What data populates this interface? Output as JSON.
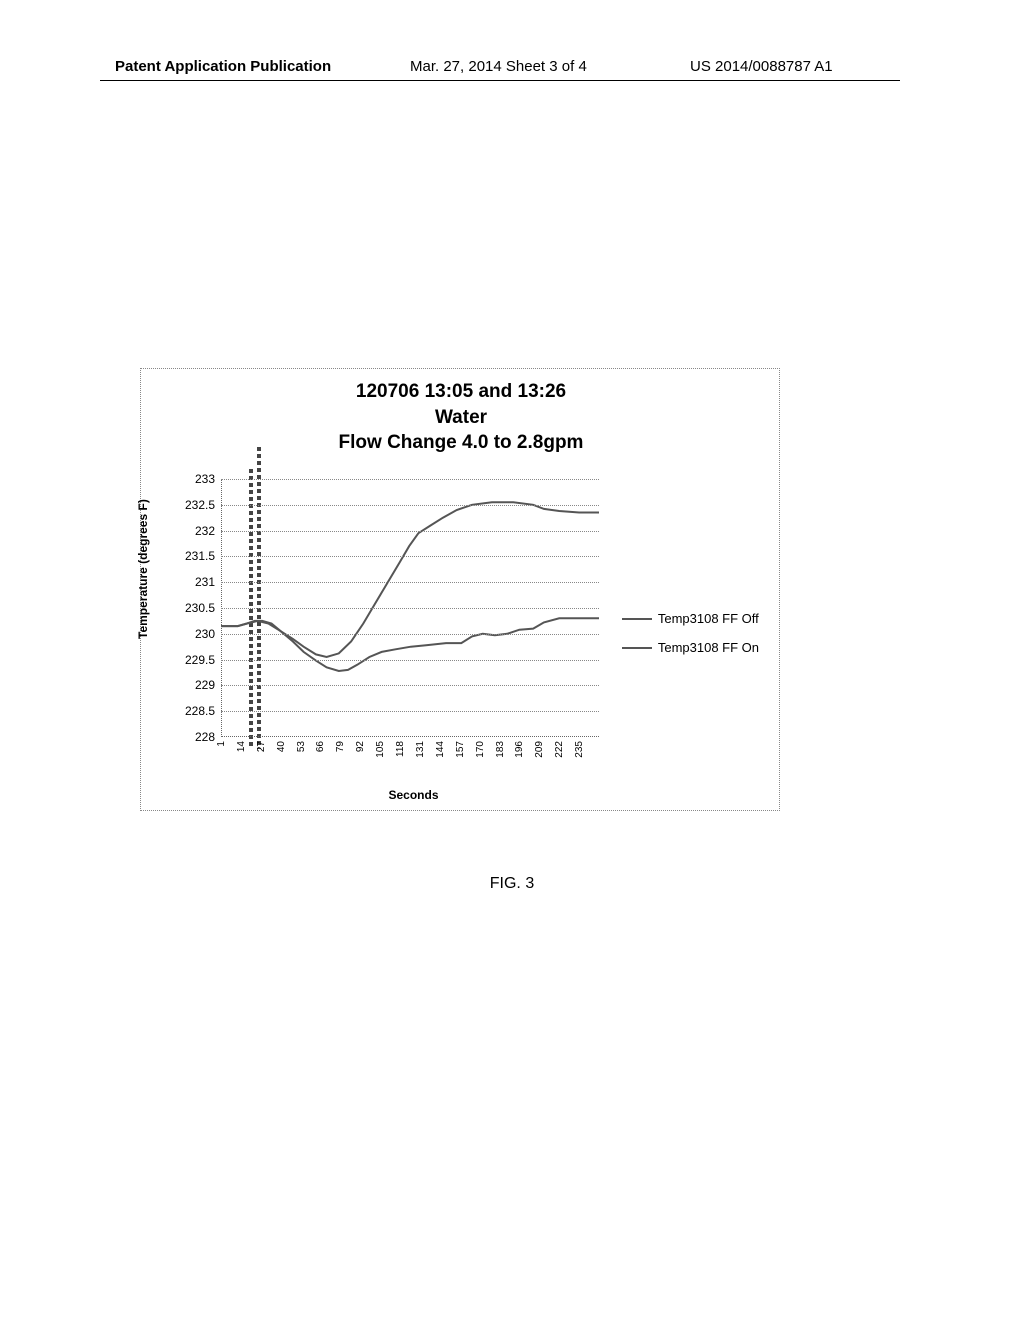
{
  "header": {
    "left": "Patent Application Publication",
    "center": "Mar. 27, 2014  Sheet 3 of 4",
    "right": "US 2014/0088787 A1"
  },
  "chart": {
    "type": "line",
    "title_line1": "120706 13:05 and 13:26",
    "title_line2": "Water",
    "title_line3": "Flow Change 4.0 to 2.8gpm",
    "title_fontsize": 19,
    "y_axis_label": "Temperature (degrees F)",
    "x_axis_label": "Seconds",
    "label_fontsize": 12,
    "ylim": [
      228,
      233
    ],
    "ytick_step": 0.5,
    "y_ticks": [
      228,
      228.5,
      229,
      229.5,
      230,
      230.5,
      231,
      231.5,
      232,
      232.5,
      233
    ],
    "x_ticks": [
      1,
      14,
      27,
      40,
      53,
      66,
      79,
      92,
      105,
      118,
      131,
      144,
      157,
      170,
      183,
      196,
      209,
      222,
      235
    ],
    "xlim": [
      1,
      248
    ],
    "grid_color": "#888888",
    "background_color": "#ffffff",
    "line_color": "#555555",
    "line_width": 2,
    "legend": [
      {
        "label": "Temp3108 FF Off",
        "color": "#555555"
      },
      {
        "label": "Temp3108 FF On",
        "color": "#555555"
      }
    ],
    "series": [
      {
        "name": "Temp3108 FF Off",
        "points": [
          [
            1,
            230.15
          ],
          [
            12,
            230.15
          ],
          [
            18,
            230.2
          ],
          [
            23,
            230.25
          ],
          [
            28,
            230.25
          ],
          [
            34,
            230.2
          ],
          [
            40,
            230.05
          ],
          [
            48,
            229.9
          ],
          [
            55,
            229.75
          ],
          [
            63,
            229.6
          ],
          [
            70,
            229.55
          ],
          [
            78,
            229.62
          ],
          [
            86,
            229.85
          ],
          [
            94,
            230.2
          ],
          [
            102,
            230.6
          ],
          [
            110,
            231.0
          ],
          [
            118,
            231.4
          ],
          [
            124,
            231.7
          ],
          [
            130,
            231.95
          ],
          [
            138,
            232.1
          ],
          [
            146,
            232.25
          ],
          [
            155,
            232.4
          ],
          [
            165,
            232.5
          ],
          [
            178,
            232.55
          ],
          [
            192,
            232.55
          ],
          [
            205,
            232.5
          ],
          [
            212,
            232.42
          ],
          [
            222,
            232.38
          ],
          [
            235,
            232.35
          ],
          [
            248,
            232.35
          ]
        ]
      },
      {
        "name": "Temp3108 FF On",
        "points": [
          [
            1,
            230.15
          ],
          [
            12,
            230.15
          ],
          [
            18,
            230.2
          ],
          [
            25,
            230.25
          ],
          [
            32,
            230.2
          ],
          [
            40,
            230.05
          ],
          [
            48,
            229.85
          ],
          [
            55,
            229.65
          ],
          [
            63,
            229.48
          ],
          [
            70,
            229.35
          ],
          [
            78,
            229.28
          ],
          [
            84,
            229.3
          ],
          [
            90,
            229.4
          ],
          [
            98,
            229.55
          ],
          [
            106,
            229.65
          ],
          [
            115,
            229.7
          ],
          [
            125,
            229.75
          ],
          [
            135,
            229.78
          ],
          [
            148,
            229.82
          ],
          [
            158,
            229.82
          ],
          [
            165,
            229.95
          ],
          [
            172,
            230.0
          ],
          [
            180,
            229.97
          ],
          [
            188,
            230.0
          ],
          [
            196,
            230.08
          ],
          [
            205,
            230.1
          ],
          [
            212,
            230.22
          ],
          [
            222,
            230.3
          ],
          [
            235,
            230.3
          ],
          [
            248,
            230.3
          ]
        ]
      }
    ]
  },
  "figure_label": "FIG. 3"
}
